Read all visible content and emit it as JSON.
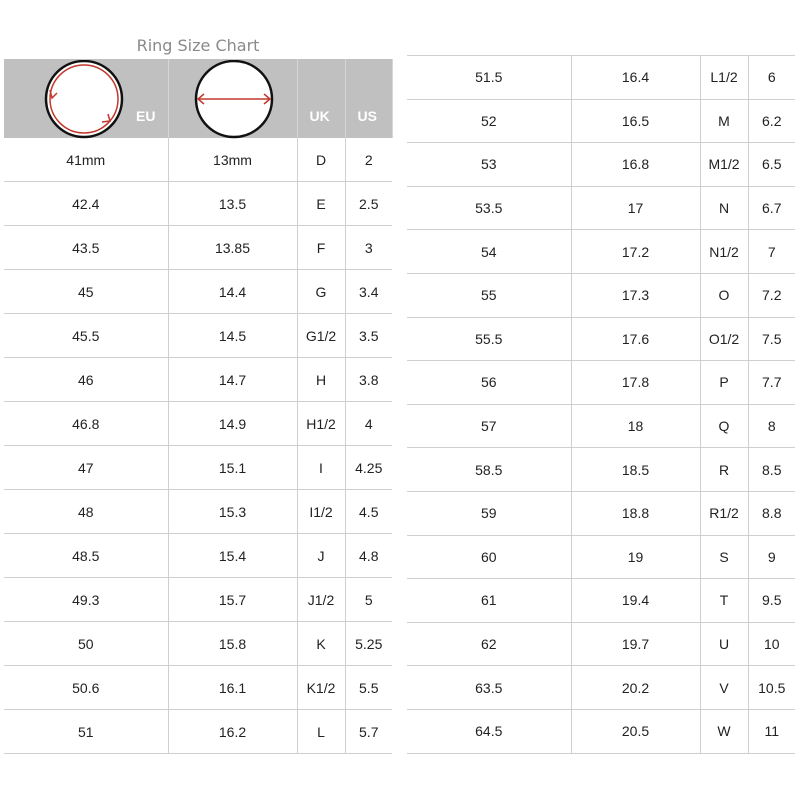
{
  "title": "Ring Size Chart",
  "header": {
    "eu": "EU",
    "uk": "UK",
    "us": "US",
    "circumference_icon": "circle-circumference-icon",
    "diameter_icon": "circle-diameter-icon",
    "accent": "#c0392b"
  },
  "left_rows": [
    [
      "41mm",
      "13mm",
      "D",
      "2"
    ],
    [
      "42.4",
      "13.5",
      "E",
      "2.5"
    ],
    [
      "43.5",
      "13.85",
      "F",
      "3"
    ],
    [
      "45",
      "14.4",
      "G",
      "3.4"
    ],
    [
      "45.5",
      "14.5",
      "G1/2",
      "3.5"
    ],
    [
      "46",
      "14.7",
      "H",
      "3.8"
    ],
    [
      "46.8",
      "14.9",
      "H1/2",
      "4"
    ],
    [
      "47",
      "15.1",
      "I",
      "4.25"
    ],
    [
      "48",
      "15.3",
      "I1/2",
      "4.5"
    ],
    [
      "48.5",
      "15.4",
      "J",
      "4.8"
    ],
    [
      "49.3",
      "15.7",
      "J1/2",
      "5"
    ],
    [
      "50",
      "15.8",
      "K",
      "5.25"
    ],
    [
      "50.6",
      "16.1",
      "K1/2",
      "5.5"
    ],
    [
      "51",
      "16.2",
      "L",
      "5.7"
    ]
  ],
  "right_rows": [
    [
      "51.5",
      "16.4",
      "L1/2",
      "6"
    ],
    [
      "52",
      "16.5",
      "M",
      "6.2"
    ],
    [
      "53",
      "16.8",
      "M1/2",
      "6.5"
    ],
    [
      "53.5",
      "17",
      "N",
      "6.7"
    ],
    [
      "54",
      "17.2",
      "N1/2",
      "7"
    ],
    [
      "55",
      "17.3",
      "O",
      "7.2"
    ],
    [
      "55.5",
      "17.6",
      "O1/2",
      "7.5"
    ],
    [
      "56",
      "17.8",
      "P",
      "7.7"
    ],
    [
      "57",
      "18",
      "Q",
      "8"
    ],
    [
      "58.5",
      "18.5",
      "R",
      "8.5"
    ],
    [
      "59",
      "18.8",
      "R1/2",
      "8.8"
    ],
    [
      "60",
      "19",
      "S",
      "9"
    ],
    [
      "61",
      "19.4",
      "T",
      "9.5"
    ],
    [
      "62",
      "19.7",
      "U",
      "10"
    ],
    [
      "63.5",
      "20.2",
      "V",
      "10.5"
    ],
    [
      "64.5",
      "20.5",
      "W",
      "11"
    ]
  ]
}
